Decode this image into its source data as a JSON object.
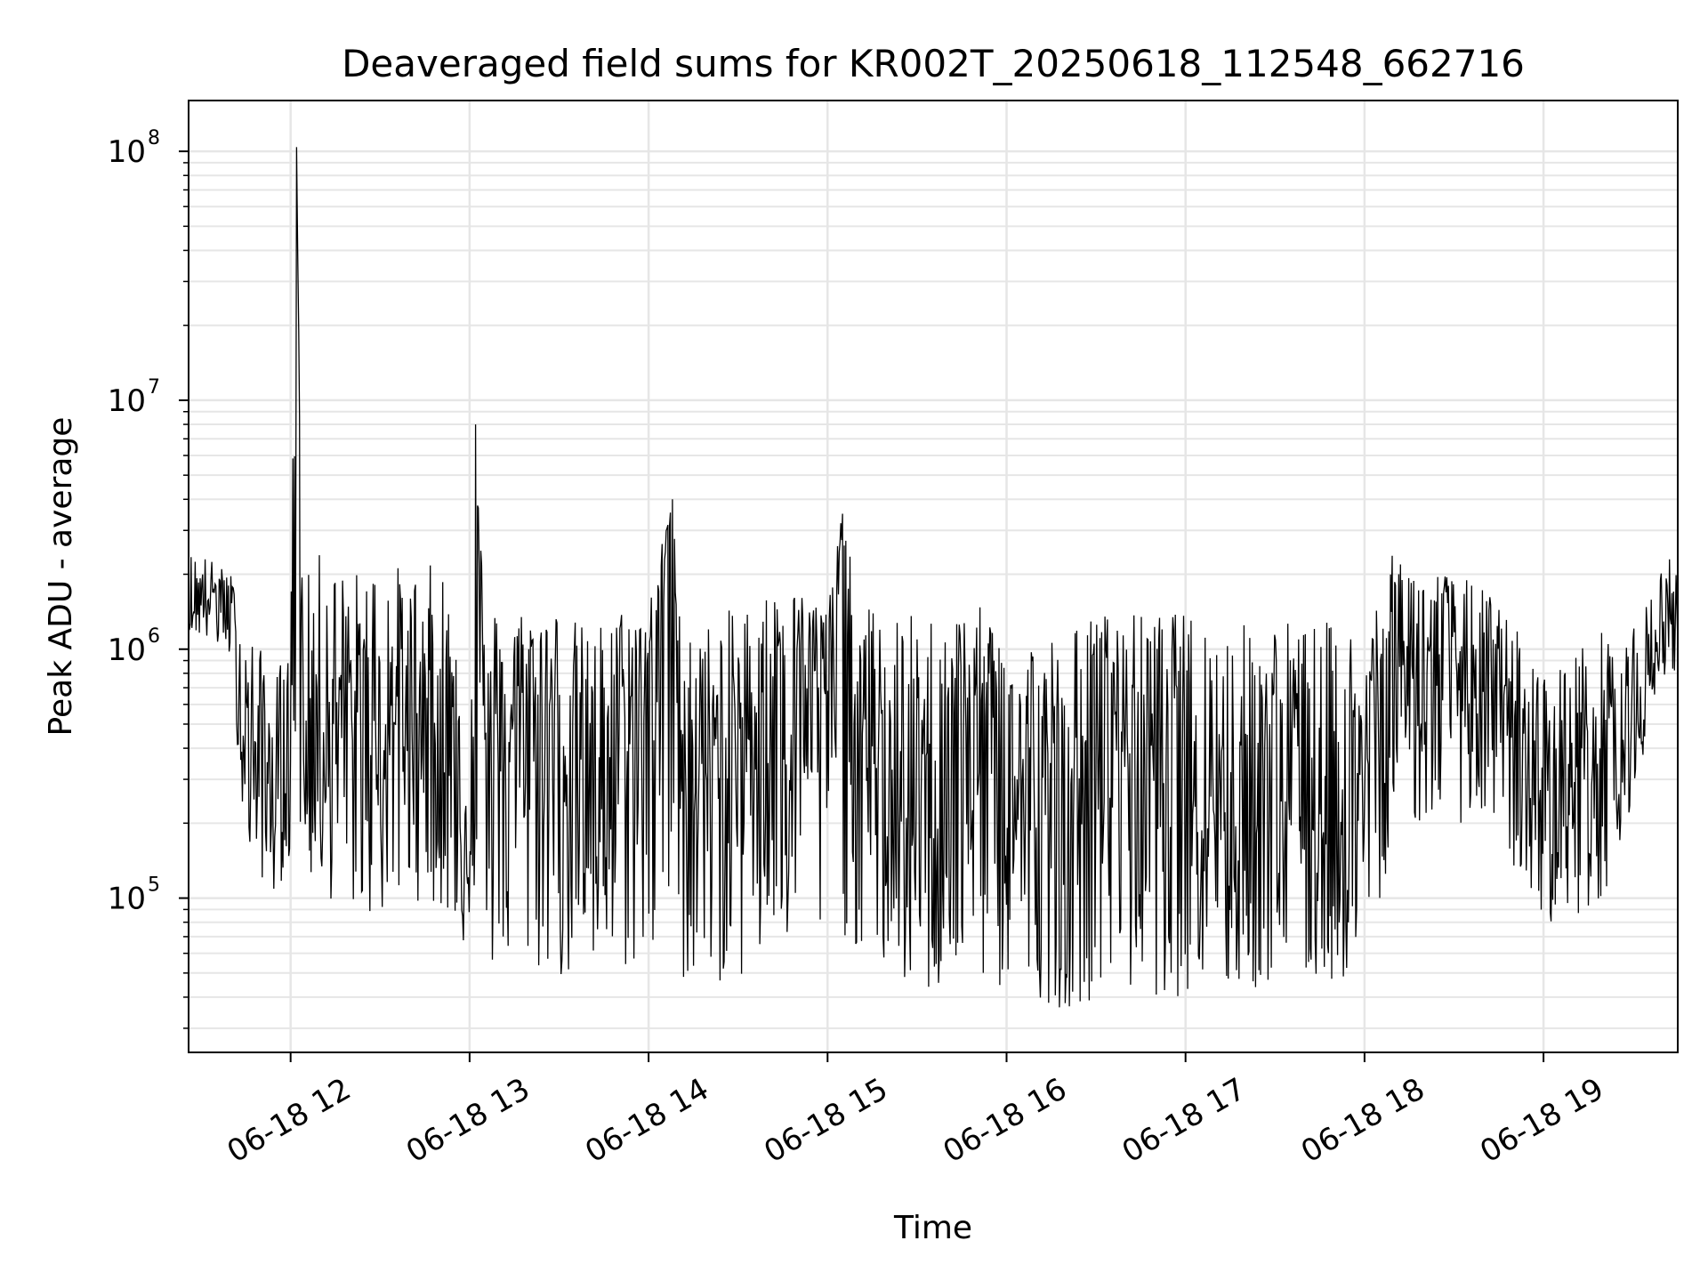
{
  "chart_data": {
    "type": "line",
    "title": "Deaveraged field sums for KR002T_20250618_112548_662716",
    "xlabel": "Time",
    "ylabel": "Peak ADU - average",
    "y_scale": "log",
    "ylim": [
      24000,
      160000000
    ],
    "xlim": [
      "2025-06-18T11:25:48",
      "2025-06-18T19:45:00"
    ],
    "x_ticks": [
      {
        "label": "06-18 12",
        "value": "2025-06-18T12:00:00"
      },
      {
        "label": "06-18 13",
        "value": "2025-06-18T13:00:00"
      },
      {
        "label": "06-18 14",
        "value": "2025-06-18T14:00:00"
      },
      {
        "label": "06-18 15",
        "value": "2025-06-18T15:00:00"
      },
      {
        "label": "06-18 16",
        "value": "2025-06-18T16:00:00"
      },
      {
        "label": "06-18 17",
        "value": "2025-06-18T17:00:00"
      },
      {
        "label": "06-18 18",
        "value": "2025-06-18T18:00:00"
      },
      {
        "label": "06-18 19",
        "value": "2025-06-18T19:00:00"
      }
    ],
    "y_ticks": [
      {
        "base": "10",
        "exp": "5",
        "value": 100000
      },
      {
        "base": "10",
        "exp": "6",
        "value": 1000000
      },
      {
        "base": "10",
        "exp": "7",
        "value": 10000000
      },
      {
        "base": "10",
        "exp": "8",
        "value": 100000000
      }
    ],
    "grid": true,
    "minor_grid": true,
    "legend": "none",
    "line_color": "#000000",
    "grid_color": "#e6e6e6",
    "series": [
      {
        "x": [
          "2025-06-18T11:25:48",
          "2025-06-18T11:30:00",
          "2025-06-18T11:35:00",
          "2025-06-18T11:40:00",
          "2025-06-18T11:45:00",
          "2025-06-18T11:50:00",
          "2025-06-18T11:55:00",
          "2025-06-18T12:00:00",
          "2025-06-18T12:02:00",
          "2025-06-18T12:04:00",
          "2025-06-18T12:10:00",
          "2025-06-18T12:20:00",
          "2025-06-18T12:30:00",
          "2025-06-18T12:40:00",
          "2025-06-18T12:50:00",
          "2025-06-18T13:00:00",
          "2025-06-18T13:02:00",
          "2025-06-18T13:05:00",
          "2025-06-18T13:10:00",
          "2025-06-18T13:20:00",
          "2025-06-18T13:30:00",
          "2025-06-18T13:40:00",
          "2025-06-18T13:50:00",
          "2025-06-18T14:00:00",
          "2025-06-18T14:08:00",
          "2025-06-18T14:10:00",
          "2025-06-18T14:20:00",
          "2025-06-18T14:30:00",
          "2025-06-18T14:40:00",
          "2025-06-18T14:50:00",
          "2025-06-18T15:00:00",
          "2025-06-18T15:05:00",
          "2025-06-18T15:10:00",
          "2025-06-18T15:20:00",
          "2025-06-18T15:30:00",
          "2025-06-18T15:40:00",
          "2025-06-18T15:50:00",
          "2025-06-18T16:00:00",
          "2025-06-18T16:10:00",
          "2025-06-18T16:20:00",
          "2025-06-18T16:30:00",
          "2025-06-18T16:40:00",
          "2025-06-18T16:50:00",
          "2025-06-18T17:00:00",
          "2025-06-18T17:10:00",
          "2025-06-18T17:20:00",
          "2025-06-18T17:30:00",
          "2025-06-18T17:40:00",
          "2025-06-18T17:50:00",
          "2025-06-18T18:00:00",
          "2025-06-18T18:10:00",
          "2025-06-18T18:20:00",
          "2025-06-18T18:30:00",
          "2025-06-18T18:40:00",
          "2025-06-18T18:50:00",
          "2025-06-18T19:00:00",
          "2025-06-18T19:10:00",
          "2025-06-18T19:20:00",
          "2025-06-18T19:30:00",
          "2025-06-18T19:40:00",
          "2025-06-18T19:45:00"
        ],
        "y": [
          1400000,
          1600000,
          1700000,
          1500000,
          400000,
          350000,
          250000,
          300000,
          104000000,
          400000,
          600000,
          500000,
          450000,
          600000,
          500000,
          150000,
          8000000,
          300000,
          400000,
          600000,
          500000,
          300000,
          400000,
          700000,
          4000000,
          500000,
          300000,
          400000,
          800000,
          1000000,
          600000,
          3500000,
          400000,
          300000,
          150000,
          500000,
          500000,
          300000,
          200000,
          150000,
          600000,
          500000,
          400000,
          500000,
          300000,
          200000,
          300000,
          250000,
          200000,
          300000,
          1000000,
          800000,
          900000,
          700000,
          400000,
          250000,
          300000,
          500000,
          400000,
          1300000,
          1500000
        ],
        "y_envelope_upper": [
          2500000,
          2500000,
          2200000,
          2000000,
          1300000,
          1000000,
          800000,
          1200000,
          104000000,
          1800000,
          2500000,
          2000000,
          2500000,
          2000000,
          2300000,
          1500000,
          8000000,
          1500000,
          1500000,
          1500000,
          1500000,
          1200000,
          1500000,
          1600000,
          4000000,
          1500000,
          1300000,
          1500000,
          1700000,
          1700000,
          1600000,
          3500000,
          1600000,
          1400000,
          1400000,
          1400000,
          1500000,
          1300000,
          1200000,
          1200000,
          1400000,
          1400000,
          1400000,
          1400000,
          1300000,
          1300000,
          1400000,
          1300000,
          1300000,
          1300000,
          2500000,
          2200000,
          2000000,
          1800000,
          1300000,
          800000,
          1000000,
          1200000,
          1200000,
          2200000,
          2600000
        ],
        "y_envelope_lower": [
          1200000,
          1100000,
          1000000,
          900000,
          150000,
          120000,
          100000,
          150000,
          200000,
          130000,
          100000,
          90000,
          80000,
          100000,
          90000,
          60000,
          60000,
          50000,
          50000,
          50000,
          45000,
          45000,
          50000,
          50000,
          50000,
          45000,
          45000,
          45000,
          50000,
          60000,
          60000,
          70000,
          60000,
          50000,
          40000,
          40000,
          45000,
          40000,
          40000,
          35000,
          40000,
          40000,
          40000,
          40000,
          40000,
          40000,
          45000,
          45000,
          45000,
          50000,
          180000,
          200000,
          200000,
          200000,
          130000,
          80000,
          80000,
          100000,
          250000,
          800000,
          700000
        ]
      }
    ]
  }
}
